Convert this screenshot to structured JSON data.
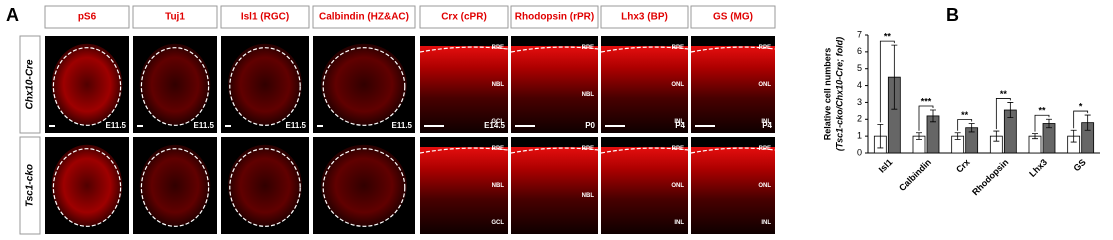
{
  "panel_labels": [
    "A",
    "B"
  ],
  "figure_a": {
    "columns": [
      "pS6",
      "Tuj1",
      "Isl1 (RGC)",
      "Calbindin (HZ&AC)",
      "Crx (cPR)",
      "Rhodopsin (rPR)",
      "Lhx3 (BP)",
      "GS (MG)"
    ],
    "rows": [
      "Chx10-Cre",
      "Tsc1-cko"
    ],
    "stages": [
      "E11.5",
      "E11.5",
      "E11.5",
      "E11.5",
      "E14.5",
      "P0",
      "P4",
      "P4"
    ],
    "layers": [
      [
        [],
        [],
        [],
        [],
        [
          "RPE",
          "NBL",
          "GCL"
        ],
        [
          "RPE",
          "NBL"
        ],
        [
          "RPE",
          "ONL",
          "INL"
        ],
        [
          "RPE",
          "ONL",
          "INL"
        ]
      ],
      [
        [],
        [],
        [],
        [],
        [
          "RPE",
          "NBL",
          "GCL"
        ],
        [
          "RPE",
          "NBL"
        ],
        [
          "RPE",
          "ONL",
          "INL"
        ],
        [
          "RPE",
          "ONL",
          "INL"
        ]
      ]
    ]
  },
  "chart_data": {
    "type": "bar",
    "y_label": [
      "Relative cell numbers",
      "(Tsc1-cko/Chx10-Cre; fold)"
    ],
    "categories": [
      "Isl1",
      "Calbindin",
      "Crx",
      "Rhodopsin",
      "Lhx3",
      "GS"
    ],
    "series": [
      {
        "color": "#ffffff",
        "values": [
          1,
          1,
          1,
          1,
          1,
          1
        ],
        "errors": [
          0.7,
          0.2,
          0.2,
          0.3,
          0.15,
          0.35
        ]
      },
      {
        "color": "#666666",
        "values": [
          4.5,
          2.2,
          1.5,
          2.55,
          1.75,
          1.8
        ],
        "errors": [
          1.9,
          0.35,
          0.25,
          0.45,
          0.25,
          0.45
        ]
      }
    ],
    "significance": [
      "**",
      "***",
      "**",
      "**",
      "**",
      "*"
    ],
    "ylim": [
      0,
      7
    ],
    "yticks": [
      0,
      1,
      2,
      3,
      4,
      5,
      6,
      7
    ]
  }
}
